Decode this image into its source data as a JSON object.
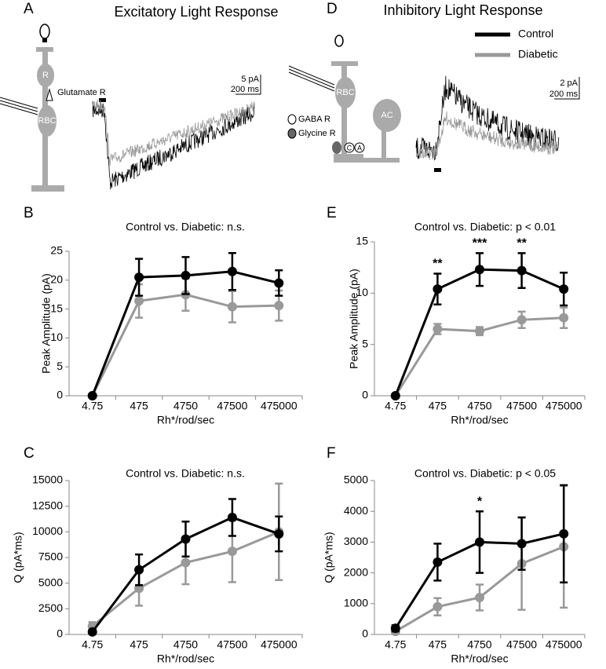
{
  "panel_a": {
    "letter": "A",
    "title": "Excitatory Light Response",
    "cell_labels": [
      "R",
      "Glutamate R",
      "RBC"
    ],
    "scale_bar": [
      "5 pA",
      "200 ms"
    ]
  },
  "panel_d": {
    "letter": "D",
    "title": "Inhibitory Light Response",
    "cell_labels": [
      "RBC",
      "AC",
      "GABA R",
      "Glycine R",
      "C",
      "A"
    ],
    "scale_bar": [
      "2 pA",
      "200 ms"
    ]
  },
  "chart_data": [
    {
      "type": "line",
      "letter": "B",
      "title": "Control vs. Diabetic: n.s.",
      "y_label": "Peak Amplitude (pA)",
      "x_label": "Rh*/rod/sec",
      "categories": [
        "4.75",
        "475",
        "4750",
        "47500",
        "475000"
      ],
      "series": [
        {
          "name": "Control",
          "color": "#000000",
          "values": [
            0,
            20.5,
            20.8,
            21.5,
            19.5
          ],
          "errors": [
            0,
            3.2,
            3.2,
            3.2,
            2.2
          ]
        },
        {
          "name": "Diabetic",
          "color": "#999999",
          "values": [
            0,
            16.4,
            17.5,
            15.4,
            15.6
          ],
          "errors": [
            0,
            2.9,
            2.8,
            2.7,
            2.6
          ]
        }
      ],
      "ylim": [
        0,
        25
      ],
      "yticks": [
        0,
        5,
        10,
        15,
        20,
        25
      ]
    },
    {
      "type": "line",
      "letter": "C",
      "title": "Control vs. Diabetic: n.s.",
      "y_label": "Q (pA*ms)",
      "x_label": "Rh*/rod/sec",
      "categories": [
        "4.75",
        "475",
        "4750",
        "47500",
        "475000"
      ],
      "series": [
        {
          "name": "Control",
          "color": "#000000",
          "values": [
            250,
            6300,
            9300,
            11400,
            9800
          ],
          "errors": [
            200,
            1500,
            1700,
            1800,
            1700
          ]
        },
        {
          "name": "Diabetic",
          "color": "#999999",
          "values": [
            800,
            4500,
            7000,
            8100,
            10000
          ],
          "errors": [
            400,
            1700,
            2100,
            3000,
            4700
          ]
        }
      ],
      "ylim": [
        0,
        15000
      ],
      "yticks": [
        0,
        2500,
        5000,
        7500,
        10000,
        12500,
        15000
      ]
    },
    {
      "type": "line",
      "letter": "E",
      "title": "Control vs. Diabetic: p < 0.01",
      "y_label": "Peak Amplitude (pA)",
      "x_label": "Rh*/rod/sec",
      "categories": [
        "4.75",
        "475",
        "4750",
        "47500",
        "475000"
      ],
      "series": [
        {
          "name": "Control",
          "color": "#000000",
          "values": [
            0,
            10.4,
            12.3,
            12.2,
            10.4
          ],
          "errors": [
            0,
            1.5,
            1.6,
            1.7,
            1.6
          ]
        },
        {
          "name": "Diabetic",
          "color": "#999999",
          "values": [
            0,
            6.5,
            6.3,
            7.4,
            7.6
          ],
          "errors": [
            0,
            0.5,
            0.4,
            0.8,
            1.0
          ]
        }
      ],
      "significance": [
        null,
        "**",
        "***",
        "**",
        null
      ],
      "ylim": [
        0,
        15
      ],
      "yticks": [
        0,
        5,
        10,
        15
      ]
    },
    {
      "type": "line",
      "letter": "F",
      "title": "Control vs. Diabetic: p < 0.05",
      "y_label": "Q (pA*ms)",
      "x_label": "Rh*/rod/sec",
      "categories": [
        "4.75",
        "475",
        "4750",
        "47500",
        "475000"
      ],
      "series": [
        {
          "name": "Control",
          "color": "#000000",
          "values": [
            200,
            2350,
            3000,
            2950,
            3270
          ],
          "errors": [
            100,
            600,
            1000,
            850,
            1580
          ]
        },
        {
          "name": "Diabetic",
          "color": "#999999",
          "values": [
            100,
            900,
            1200,
            2300,
            2850
          ],
          "errors": [
            50,
            280,
            420,
            1500,
            1980
          ]
        }
      ],
      "significance": [
        null,
        null,
        "*",
        null,
        null
      ],
      "ylim": [
        0,
        5000
      ],
      "yticks": [
        0,
        1000,
        2000,
        3000,
        4000,
        5000
      ]
    }
  ]
}
